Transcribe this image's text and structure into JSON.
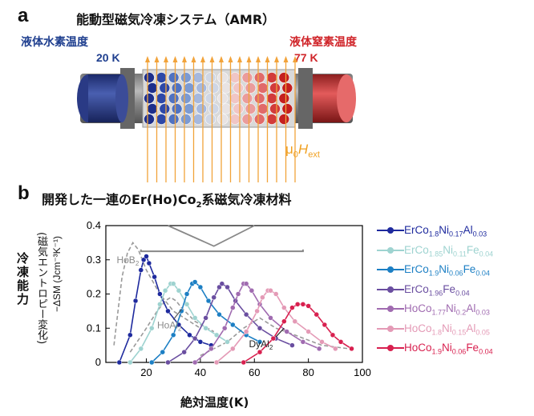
{
  "panel_a": {
    "letter": "a",
    "title": "能動型磁気冷凍システム（AMR）",
    "cold_side_label": "液体水素温度",
    "cold_side_temp": "20 K",
    "hot_side_label": "液体窒素温度",
    "hot_side_temp": "77 K",
    "field_label": "μ0Hext",
    "colors": {
      "cold": "#2d3e8a",
      "hot": "#d22b2b",
      "field_arrow": "#f2a33a"
    }
  },
  "panel_b": {
    "letter": "b",
    "title": "開発した一連のEr(Ho)Co2系磁気冷凍材料",
    "ylabel_line1": "冷凍能力",
    "ylabel_line2": "(磁気エントロピー変化)",
    "ylabel_line3": "−ΔSM (Jcm⁻³K⁻¹)",
    "xlabel": "絶対温度(K)",
    "annotations": [
      "HoB2",
      "HoAl2",
      "DyAl2"
    ]
  },
  "chart_data": {
    "type": "line",
    "xlim": [
      5,
      100
    ],
    "ylim": [
      0,
      0.4
    ],
    "xticks": [
      20,
      40,
      60,
      80,
      100
    ],
    "yticks": [
      0,
      0.1,
      0.2,
      0.3,
      0.4
    ],
    "grid": false,
    "legend_position": "right",
    "series": [
      {
        "name": "ErCo1.8Ni0.17Al0.03",
        "color": "#1e2a9e",
        "x": [
          10,
          14,
          16,
          18,
          19,
          20,
          21,
          23,
          25,
          28,
          32,
          36,
          40,
          44
        ],
        "y": [
          0.0,
          0.08,
          0.18,
          0.27,
          0.3,
          0.31,
          0.29,
          0.25,
          0.2,
          0.15,
          0.11,
          0.08,
          0.06,
          0.05
        ]
      },
      {
        "name": "ErCo1.85Ni0.11Fe0.04",
        "color": "#9ed3d0",
        "x": [
          14,
          18,
          22,
          25,
          27,
          29,
          30,
          32,
          35,
          38,
          42,
          46,
          50
        ],
        "y": [
          0.0,
          0.04,
          0.1,
          0.17,
          0.21,
          0.23,
          0.23,
          0.21,
          0.17,
          0.13,
          0.1,
          0.08,
          0.06
        ]
      },
      {
        "name": "ErCo1.9Ni0.06Fe0.04",
        "color": "#1c7fc4",
        "x": [
          22,
          26,
          30,
          33,
          35,
          37,
          38,
          40,
          43,
          47,
          52,
          57,
          62
        ],
        "y": [
          0.0,
          0.03,
          0.08,
          0.15,
          0.2,
          0.23,
          0.235,
          0.22,
          0.18,
          0.14,
          0.11,
          0.08,
          0.06
        ]
      },
      {
        "name": "ErCo1.96Fe0.04",
        "color": "#6a4ea0",
        "x": [
          28,
          34,
          38,
          42,
          45,
          47,
          48,
          50,
          53,
          57,
          62,
          68,
          74
        ],
        "y": [
          0.0,
          0.03,
          0.07,
          0.13,
          0.19,
          0.22,
          0.23,
          0.22,
          0.18,
          0.14,
          0.1,
          0.07,
          0.05
        ]
      },
      {
        "name": "HoCo1.77Ni0.2Al0.03",
        "color": "#a06bb0",
        "x": [
          38,
          44,
          49,
          52,
          54,
          56,
          57,
          59,
          62,
          66,
          72,
          78,
          84
        ],
        "y": [
          0.0,
          0.04,
          0.1,
          0.16,
          0.2,
          0.23,
          0.23,
          0.21,
          0.17,
          0.13,
          0.09,
          0.06,
          0.04
        ]
      },
      {
        "name": "HoCo1.8Ni0.15Al0.05",
        "color": "#e49ab6",
        "x": [
          46,
          52,
          57,
          61,
          63,
          65,
          66,
          68,
          71,
          75,
          80,
          85,
          90
        ],
        "y": [
          0.0,
          0.04,
          0.09,
          0.15,
          0.19,
          0.21,
          0.21,
          0.2,
          0.16,
          0.12,
          0.09,
          0.06,
          0.04
        ]
      },
      {
        "name": "HoCo1.9Ni0.06Fe0.04",
        "color": "#d8204f",
        "x": [
          56,
          62,
          67,
          71,
          74,
          76,
          78,
          80,
          83,
          86,
          89,
          92,
          96
        ],
        "y": [
          0.0,
          0.03,
          0.07,
          0.12,
          0.16,
          0.17,
          0.17,
          0.165,
          0.14,
          0.11,
          0.08,
          0.06,
          0.04
        ]
      }
    ],
    "reference_curves": [
      {
        "name": "HoB2",
        "x": [
          8,
          11,
          13,
          15,
          17,
          20,
          25,
          30,
          40
        ],
        "y": [
          0.05,
          0.25,
          0.32,
          0.35,
          0.33,
          0.27,
          0.2,
          0.15,
          0.1
        ]
      },
      {
        "name": "HoAl2",
        "x": [
          14,
          20,
          24,
          27,
          29,
          31,
          33,
          38,
          45
        ],
        "y": [
          0.03,
          0.1,
          0.15,
          0.18,
          0.19,
          0.18,
          0.16,
          0.12,
          0.09
        ]
      },
      {
        "name": "DyAl2",
        "x": [
          40,
          50,
          56,
          60,
          62,
          64,
          68,
          75,
          85,
          95
        ],
        "y": [
          0.02,
          0.06,
          0.1,
          0.12,
          0.13,
          0.12,
          0.1,
          0.08,
          0.05,
          0.04
        ]
      }
    ]
  }
}
